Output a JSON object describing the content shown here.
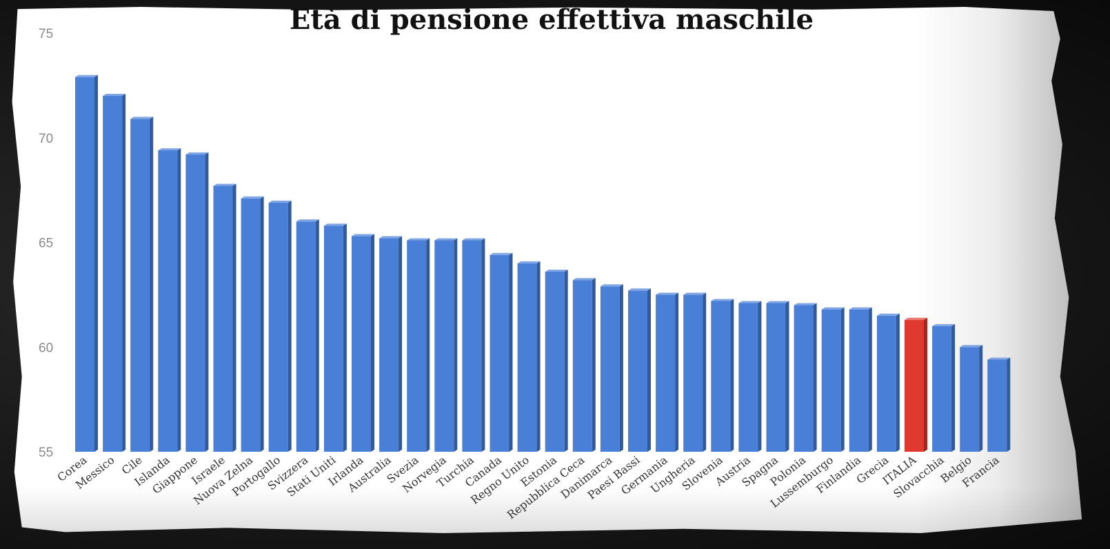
{
  "chart_data": {
    "type": "bar",
    "title": "Età di pensione effettiva maschile",
    "xlabel": "",
    "ylabel": "",
    "ylim": [
      55,
      75
    ],
    "yticks": [
      55,
      60,
      65,
      70,
      75
    ],
    "grid": false,
    "legend": "none",
    "categories": [
      "Corea",
      "Messico",
      "Cile",
      "Islanda",
      "Giappone",
      "Israele",
      "Nuova Zelna",
      "Portogallo",
      "Svizzera",
      "Stati Uniti",
      "Irlanda",
      "Australia",
      "Svezia",
      "Norvegia",
      "Turchia",
      "Canada",
      "Regno Unito",
      "Estonia",
      "Repubblica Ceca",
      "Danimarca",
      "Paesi Bassi",
      "Germania",
      "Ungheria",
      "Slovenia",
      "Austria",
      "Spagna",
      "Polonia",
      "Lussemburgo",
      "Finlandia",
      "Grecia",
      "ITALIA",
      "Slovacchia",
      "Belgio",
      "Francia"
    ],
    "values": [
      72.9,
      72.0,
      70.9,
      69.4,
      69.2,
      67.7,
      67.1,
      66.9,
      66.0,
      65.8,
      65.3,
      65.2,
      65.1,
      65.1,
      65.1,
      64.4,
      64.0,
      63.6,
      63.2,
      62.9,
      62.7,
      62.5,
      62.5,
      62.2,
      62.1,
      62.1,
      62.0,
      61.8,
      61.8,
      61.5,
      61.3,
      61.0,
      60.0,
      59.4
    ],
    "highlight": "ITALIA",
    "colors": {
      "bar": "#4a7fd7",
      "highlight": "#e03a30",
      "axis_text": "#8a8a8a",
      "title": "#111111"
    }
  }
}
